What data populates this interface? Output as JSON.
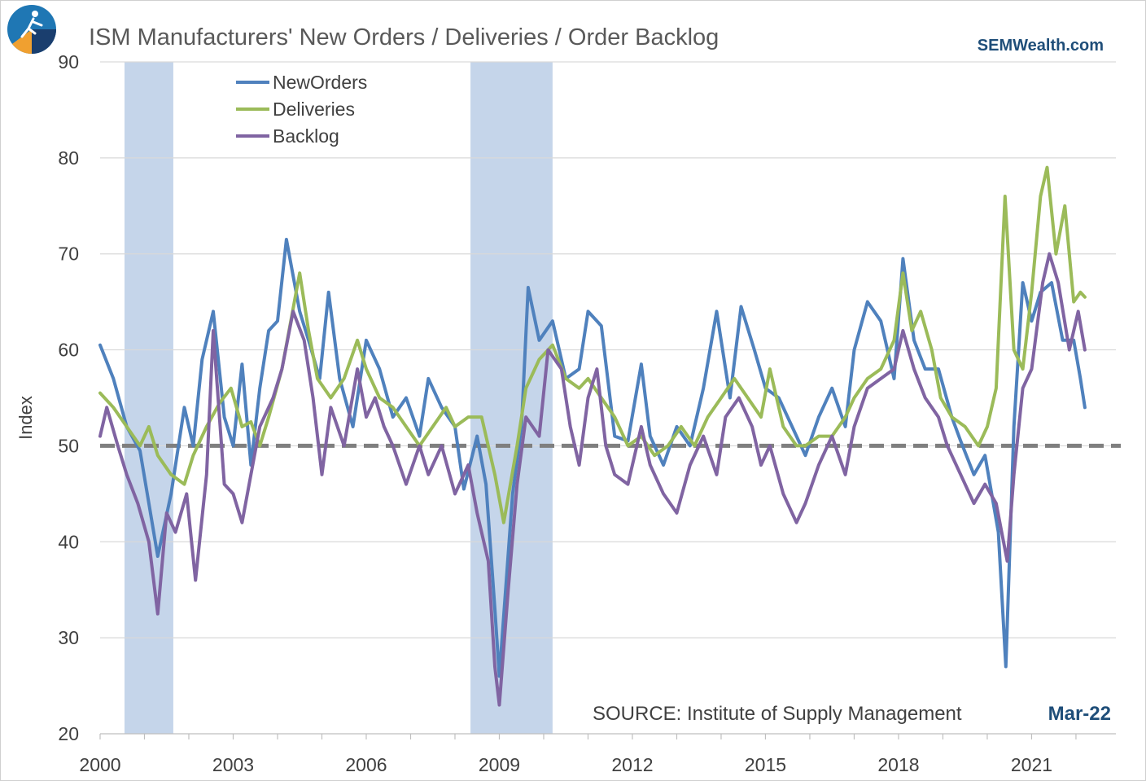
{
  "logo": {
    "icon": "runner-globe-logo-icon"
  },
  "header": {
    "title": "ISM Manufacturers' New Orders / Deliveries / Order Backlog",
    "brand": "SEMWealth.com"
  },
  "footer": {
    "source": "SOURCE:  Institute of Supply Management",
    "date": "Mar-22"
  },
  "colors": {
    "neworders": "#4f81bd",
    "deliveries": "#9bbb59",
    "backlog": "#8064a2",
    "recession": "#c5d5ea",
    "reference": "#7f7f7f"
  },
  "chart_data": {
    "type": "line",
    "xlabel": "",
    "ylabel": "Index",
    "xlim": [
      2000.0,
      2022.9
    ],
    "ylim": [
      20,
      90
    ],
    "yticks": [
      20,
      30,
      40,
      50,
      60,
      70,
      80,
      90
    ],
    "xticks": [
      2000,
      2003,
      2006,
      2009,
      2012,
      2015,
      2018,
      2021
    ],
    "grid": "horizontal",
    "legend_position": "top-left",
    "reference_line": {
      "y": 50,
      "style": "dashed"
    },
    "recessions": [
      [
        2000.55,
        2001.65
      ],
      [
        2008.35,
        2010.2
      ]
    ],
    "series": [
      {
        "name": "NewOrders",
        "color": "#4f81bd",
        "points": [
          [
            2000.0,
            60.5
          ],
          [
            2000.3,
            57
          ],
          [
            2000.6,
            52
          ],
          [
            2000.9,
            49.5
          ],
          [
            2001.1,
            44
          ],
          [
            2001.3,
            38.5
          ],
          [
            2001.6,
            45
          ],
          [
            2001.9,
            54
          ],
          [
            2002.1,
            50
          ],
          [
            2002.3,
            59
          ],
          [
            2002.55,
            64
          ],
          [
            2002.8,
            53
          ],
          [
            2003.0,
            50
          ],
          [
            2003.2,
            58.5
          ],
          [
            2003.4,
            48
          ],
          [
            2003.6,
            56
          ],
          [
            2003.8,
            62
          ],
          [
            2004.0,
            63
          ],
          [
            2004.2,
            71.5
          ],
          [
            2004.5,
            64
          ],
          [
            2004.7,
            61
          ],
          [
            2004.95,
            57
          ],
          [
            2005.15,
            66
          ],
          [
            2005.4,
            57
          ],
          [
            2005.7,
            52
          ],
          [
            2006.0,
            61
          ],
          [
            2006.3,
            58
          ],
          [
            2006.6,
            53
          ],
          [
            2006.9,
            55
          ],
          [
            2007.2,
            51
          ],
          [
            2007.4,
            57
          ],
          [
            2007.7,
            54
          ],
          [
            2008.0,
            52
          ],
          [
            2008.2,
            45.5
          ],
          [
            2008.5,
            51
          ],
          [
            2008.7,
            46
          ],
          [
            2008.9,
            33
          ],
          [
            2009.0,
            26
          ],
          [
            2009.3,
            45
          ],
          [
            2009.5,
            52
          ],
          [
            2009.65,
            66.5
          ],
          [
            2009.9,
            61
          ],
          [
            2010.2,
            63
          ],
          [
            2010.5,
            57
          ],
          [
            2010.8,
            58
          ],
          [
            2011.0,
            64
          ],
          [
            2011.3,
            62.5
          ],
          [
            2011.6,
            51
          ],
          [
            2011.9,
            50.5
          ],
          [
            2012.2,
            58.5
          ],
          [
            2012.4,
            51
          ],
          [
            2012.7,
            48
          ],
          [
            2013.0,
            52
          ],
          [
            2013.3,
            50
          ],
          [
            2013.6,
            56
          ],
          [
            2013.9,
            64
          ],
          [
            2014.2,
            55
          ],
          [
            2014.45,
            64.5
          ],
          [
            2014.75,
            60
          ],
          [
            2015.0,
            56
          ],
          [
            2015.3,
            55
          ],
          [
            2015.6,
            52
          ],
          [
            2015.9,
            49
          ],
          [
            2016.2,
            53
          ],
          [
            2016.5,
            56
          ],
          [
            2016.8,
            52
          ],
          [
            2017.0,
            60
          ],
          [
            2017.3,
            65
          ],
          [
            2017.6,
            63
          ],
          [
            2017.9,
            57
          ],
          [
            2018.1,
            69.5
          ],
          [
            2018.35,
            61
          ],
          [
            2018.6,
            58
          ],
          [
            2018.9,
            58
          ],
          [
            2019.2,
            53
          ],
          [
            2019.4,
            50.5
          ],
          [
            2019.7,
            47
          ],
          [
            2019.95,
            49
          ],
          [
            2020.25,
            41
          ],
          [
            2020.42,
            27
          ],
          [
            2020.6,
            52
          ],
          [
            2020.8,
            67
          ],
          [
            2021.0,
            63
          ],
          [
            2021.2,
            66
          ],
          [
            2021.45,
            67
          ],
          [
            2021.7,
            61
          ],
          [
            2021.95,
            61
          ],
          [
            2022.1,
            57
          ],
          [
            2022.2,
            54
          ]
        ]
      },
      {
        "name": "Deliveries",
        "color": "#9bbb59",
        "points": [
          [
            2000.0,
            55.5
          ],
          [
            2000.3,
            54
          ],
          [
            2000.6,
            52
          ],
          [
            2000.9,
            50
          ],
          [
            2001.1,
            52
          ],
          [
            2001.3,
            49
          ],
          [
            2001.6,
            47
          ],
          [
            2001.9,
            46
          ],
          [
            2002.1,
            49
          ],
          [
            2002.4,
            52
          ],
          [
            2002.7,
            54.5
          ],
          [
            2002.95,
            56
          ],
          [
            2003.2,
            52
          ],
          [
            2003.4,
            52.5
          ],
          [
            2003.6,
            50
          ],
          [
            2003.8,
            53
          ],
          [
            2004.1,
            58
          ],
          [
            2004.3,
            63
          ],
          [
            2004.5,
            68
          ],
          [
            2004.7,
            62
          ],
          [
            2004.9,
            57
          ],
          [
            2005.2,
            55
          ],
          [
            2005.5,
            57
          ],
          [
            2005.8,
            61
          ],
          [
            2006.0,
            58
          ],
          [
            2006.3,
            55
          ],
          [
            2006.6,
            54
          ],
          [
            2006.9,
            52
          ],
          [
            2007.2,
            50
          ],
          [
            2007.5,
            52
          ],
          [
            2007.8,
            54
          ],
          [
            2008.0,
            52
          ],
          [
            2008.3,
            53
          ],
          [
            2008.6,
            53
          ],
          [
            2008.9,
            47
          ],
          [
            2009.1,
            42
          ],
          [
            2009.4,
            50
          ],
          [
            2009.6,
            56
          ],
          [
            2009.9,
            59
          ],
          [
            2010.2,
            60.5
          ],
          [
            2010.5,
            57
          ],
          [
            2010.8,
            56
          ],
          [
            2011.0,
            57
          ],
          [
            2011.3,
            55
          ],
          [
            2011.6,
            53
          ],
          [
            2011.9,
            50
          ],
          [
            2012.2,
            51
          ],
          [
            2012.5,
            49
          ],
          [
            2012.8,
            50
          ],
          [
            2013.1,
            52
          ],
          [
            2013.4,
            50
          ],
          [
            2013.7,
            53
          ],
          [
            2014.0,
            55
          ],
          [
            2014.3,
            57
          ],
          [
            2014.6,
            55
          ],
          [
            2014.9,
            53
          ],
          [
            2015.1,
            58
          ],
          [
            2015.4,
            52
          ],
          [
            2015.7,
            50
          ],
          [
            2015.9,
            50
          ],
          [
            2016.2,
            51
          ],
          [
            2016.5,
            51
          ],
          [
            2016.8,
            53
          ],
          [
            2017.0,
            55
          ],
          [
            2017.3,
            57
          ],
          [
            2017.6,
            58
          ],
          [
            2017.9,
            61
          ],
          [
            2018.1,
            68
          ],
          [
            2018.3,
            62
          ],
          [
            2018.5,
            64
          ],
          [
            2018.75,
            60
          ],
          [
            2018.95,
            55
          ],
          [
            2019.2,
            53
          ],
          [
            2019.5,
            52
          ],
          [
            2019.8,
            50
          ],
          [
            2020.0,
            52
          ],
          [
            2020.2,
            56
          ],
          [
            2020.4,
            76
          ],
          [
            2020.6,
            60
          ],
          [
            2020.8,
            58
          ],
          [
            2021.0,
            66
          ],
          [
            2021.2,
            76
          ],
          [
            2021.35,
            79
          ],
          [
            2021.55,
            70
          ],
          [
            2021.75,
            75
          ],
          [
            2021.95,
            65
          ],
          [
            2022.1,
            66
          ],
          [
            2022.2,
            65.5
          ]
        ]
      },
      {
        "name": "Backlog",
        "color": "#8064a2",
        "points": [
          [
            2000.0,
            51
          ],
          [
            2000.15,
            54
          ],
          [
            2000.4,
            50
          ],
          [
            2000.6,
            47
          ],
          [
            2000.85,
            44
          ],
          [
            2001.1,
            40
          ],
          [
            2001.3,
            32.5
          ],
          [
            2001.5,
            43
          ],
          [
            2001.7,
            41
          ],
          [
            2001.95,
            45
          ],
          [
            2002.15,
            36
          ],
          [
            2002.4,
            47
          ],
          [
            2002.55,
            62
          ],
          [
            2002.8,
            46
          ],
          [
            2003.0,
            45
          ],
          [
            2003.2,
            42
          ],
          [
            2003.4,
            47
          ],
          [
            2003.6,
            52
          ],
          [
            2003.9,
            55
          ],
          [
            2004.1,
            58
          ],
          [
            2004.35,
            64
          ],
          [
            2004.6,
            61
          ],
          [
            2004.8,
            55
          ],
          [
            2005.0,
            47
          ],
          [
            2005.2,
            54
          ],
          [
            2005.5,
            50
          ],
          [
            2005.8,
            58
          ],
          [
            2006.0,
            53
          ],
          [
            2006.2,
            55
          ],
          [
            2006.4,
            52
          ],
          [
            2006.6,
            50
          ],
          [
            2006.9,
            46
          ],
          [
            2007.2,
            50
          ],
          [
            2007.4,
            47
          ],
          [
            2007.7,
            50
          ],
          [
            2008.0,
            45
          ],
          [
            2008.3,
            48
          ],
          [
            2008.5,
            43
          ],
          [
            2008.75,
            38
          ],
          [
            2008.9,
            27
          ],
          [
            2009.0,
            23
          ],
          [
            2009.2,
            35
          ],
          [
            2009.4,
            46
          ],
          [
            2009.6,
            53
          ],
          [
            2009.9,
            51
          ],
          [
            2010.1,
            60
          ],
          [
            2010.4,
            58
          ],
          [
            2010.6,
            52
          ],
          [
            2010.8,
            48
          ],
          [
            2011.0,
            55
          ],
          [
            2011.2,
            58
          ],
          [
            2011.4,
            50
          ],
          [
            2011.6,
            47
          ],
          [
            2011.9,
            46
          ],
          [
            2012.2,
            52
          ],
          [
            2012.4,
            48
          ],
          [
            2012.7,
            45
          ],
          [
            2013.0,
            43
          ],
          [
            2013.3,
            48
          ],
          [
            2013.6,
            51
          ],
          [
            2013.9,
            47
          ],
          [
            2014.1,
            53
          ],
          [
            2014.4,
            55
          ],
          [
            2014.7,
            52
          ],
          [
            2014.9,
            48
          ],
          [
            2015.1,
            50
          ],
          [
            2015.4,
            45
          ],
          [
            2015.7,
            42
          ],
          [
            2015.9,
            44
          ],
          [
            2016.2,
            48
          ],
          [
            2016.5,
            51
          ],
          [
            2016.8,
            47
          ],
          [
            2017.0,
            52
          ],
          [
            2017.3,
            56
          ],
          [
            2017.6,
            57
          ],
          [
            2017.9,
            58
          ],
          [
            2018.1,
            62
          ],
          [
            2018.35,
            58
          ],
          [
            2018.6,
            55
          ],
          [
            2018.9,
            53
          ],
          [
            2019.1,
            50
          ],
          [
            2019.4,
            47
          ],
          [
            2019.7,
            44
          ],
          [
            2019.95,
            46
          ],
          [
            2020.2,
            44
          ],
          [
            2020.45,
            38
          ],
          [
            2020.6,
            47
          ],
          [
            2020.8,
            56
          ],
          [
            2021.0,
            58
          ],
          [
            2021.25,
            67
          ],
          [
            2021.4,
            70
          ],
          [
            2021.6,
            67
          ],
          [
            2021.85,
            60
          ],
          [
            2022.05,
            64
          ],
          [
            2022.2,
            60
          ]
        ]
      }
    ]
  }
}
